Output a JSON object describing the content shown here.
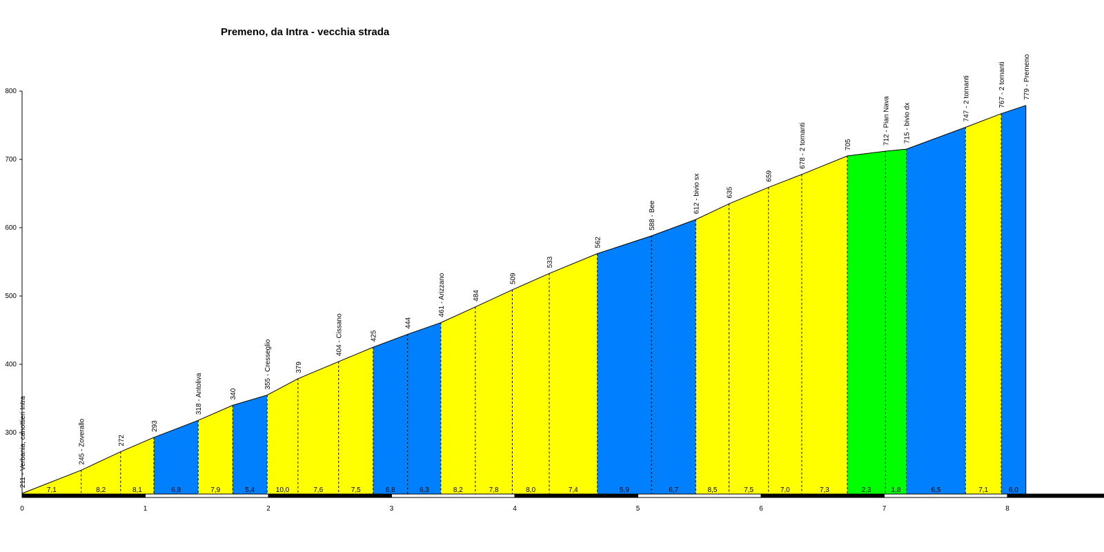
{
  "chart_data": {
    "type": "area",
    "title": "Premeno, da Intra - vecchia strada",
    "xlabel": "",
    "ylabel": "",
    "xlim": [
      0,
      8.75
    ],
    "ylim": [
      210,
      800
    ],
    "grid": false,
    "x_ticks": [
      0,
      1,
      2,
      3,
      4,
      5,
      6,
      7,
      8
    ],
    "y_ticks": [
      300,
      400,
      500,
      600,
      700,
      800
    ],
    "points": [
      {
        "x": 0.0,
        "elev": 211,
        "label": "211 - Verbania, canottieri Intra"
      },
      {
        "x": 0.48,
        "elev": 245,
        "label": "245 - Zoverallo"
      },
      {
        "x": 0.8,
        "elev": 272,
        "label": "272"
      },
      {
        "x": 1.07,
        "elev": 293,
        "label": "293"
      },
      {
        "x": 1.43,
        "elev": 318,
        "label": "318 - Antoliva"
      },
      {
        "x": 1.71,
        "elev": 340,
        "label": "340"
      },
      {
        "x": 1.99,
        "elev": 355,
        "label": "355 - Cresseglio"
      },
      {
        "x": 2.24,
        "elev": 379,
        "label": "379"
      },
      {
        "x": 2.57,
        "elev": 404,
        "label": "404 - Cissano"
      },
      {
        "x": 2.85,
        "elev": 425,
        "label": "425"
      },
      {
        "x": 3.13,
        "elev": 444,
        "label": "444"
      },
      {
        "x": 3.4,
        "elev": 461,
        "label": "461 - Arizzano"
      },
      {
        "x": 3.68,
        "elev": 484,
        "label": "484"
      },
      {
        "x": 3.98,
        "elev": 509,
        "label": "509"
      },
      {
        "x": 4.28,
        "elev": 533,
        "label": "533"
      },
      {
        "x": 4.67,
        "elev": 562,
        "label": "562"
      },
      {
        "x": 5.11,
        "elev": 588,
        "label": "588 - Bee"
      },
      {
        "x": 5.47,
        "elev": 612,
        "label": "612 - bivio sx"
      },
      {
        "x": 5.74,
        "elev": 635,
        "label": "635"
      },
      {
        "x": 6.06,
        "elev": 659,
        "label": "659"
      },
      {
        "x": 6.33,
        "elev": 678,
        "label": "678 - 2 tornanti"
      },
      {
        "x": 6.7,
        "elev": 705,
        "label": "705"
      },
      {
        "x": 7.01,
        "elev": 712,
        "label": "712 - Pian Nava"
      },
      {
        "x": 7.18,
        "elev": 715,
        "label": "715 - bivio dx"
      },
      {
        "x": 7.66,
        "elev": 747,
        "label": "747 - 2 tornanti"
      },
      {
        "x": 7.95,
        "elev": 767,
        "label": "767 - 2 tornanti"
      },
      {
        "x": 8.15,
        "elev": 779,
        "label": "779 - Premeno"
      }
    ],
    "segments": [
      {
        "gradient": "7,1",
        "color": "#ffff00"
      },
      {
        "gradient": "8,2",
        "color": "#ffff00"
      },
      {
        "gradient": "8,1",
        "color": "#ffff00"
      },
      {
        "gradient": "6,8",
        "color": "#0080ff"
      },
      {
        "gradient": "7,9",
        "color": "#ffff00"
      },
      {
        "gradient": "5,4",
        "color": "#0080ff"
      },
      {
        "gradient": "10,0",
        "color": "#ffff00"
      },
      {
        "gradient": "7,6",
        "color": "#ffff00"
      },
      {
        "gradient": "7,5",
        "color": "#ffff00"
      },
      {
        "gradient": "6,8",
        "color": "#0080ff"
      },
      {
        "gradient": "6,3",
        "color": "#0080ff"
      },
      {
        "gradient": "8,2",
        "color": "#ffff00"
      },
      {
        "gradient": "7,8",
        "color": "#ffff00"
      },
      {
        "gradient": "8,0",
        "color": "#ffff00"
      },
      {
        "gradient": "7,4",
        "color": "#ffff00"
      },
      {
        "gradient": "5,9",
        "color": "#0080ff"
      },
      {
        "gradient": "6,7",
        "color": "#0080ff"
      },
      {
        "gradient": "8,5",
        "color": "#ffff00"
      },
      {
        "gradient": "7,5",
        "color": "#ffff00"
      },
      {
        "gradient": "7,0",
        "color": "#ffff00"
      },
      {
        "gradient": "7,3",
        "color": "#ffff00"
      },
      {
        "gradient": "2,3",
        "color": "#00ff00"
      },
      {
        "gradient": "1,8",
        "color": "#00ff00"
      },
      {
        "gradient": "6,5",
        "color": "#0080ff"
      },
      {
        "gradient": "7,1",
        "color": "#ffff00"
      },
      {
        "gradient": "6,0",
        "color": "#0080ff"
      }
    ]
  }
}
